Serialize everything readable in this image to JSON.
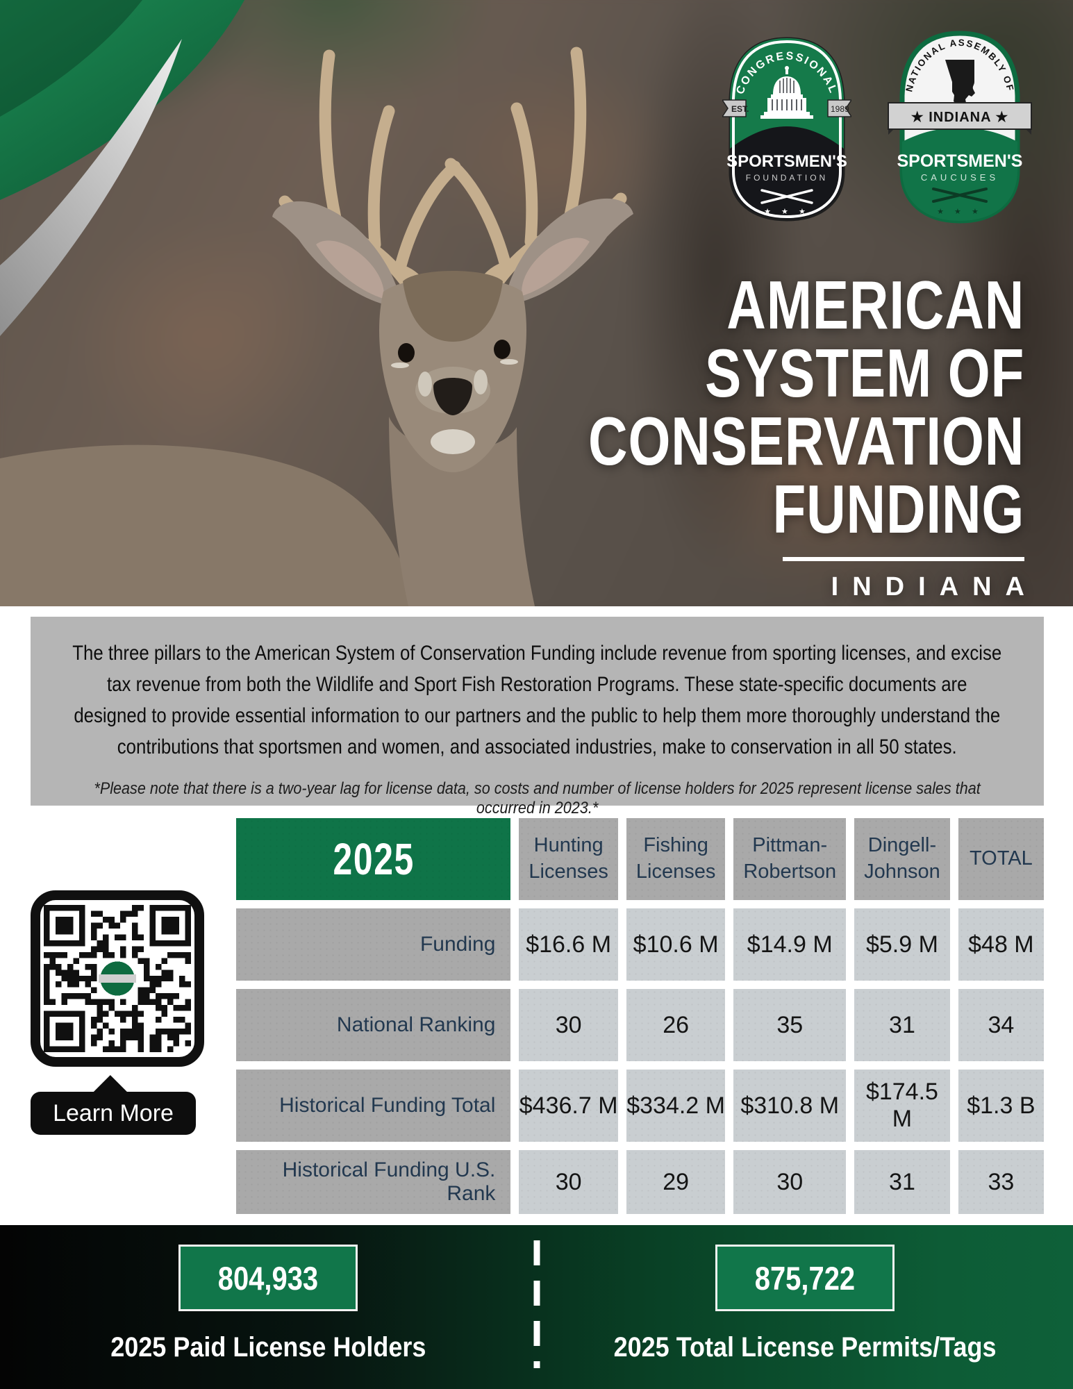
{
  "logos": {
    "csf": {
      "arc_text": "CONGRESSIONAL",
      "est_label": "EST.",
      "year_label": "1989",
      "line1": "SPORTSMEN'S",
      "line2": "FOUNDATION",
      "stars": "★ ★ ★"
    },
    "nasc": {
      "arc_text": "NATIONAL ASSEMBLY OF",
      "banner": "★ INDIANA ★",
      "line1": "SPORTSMEN'S",
      "line2": "CAUCUSES",
      "stars": "★ ★ ★"
    }
  },
  "header": {
    "title_lines": [
      "AMERICAN",
      "SYSTEM OF",
      "CONSERVATION",
      "FUNDING"
    ],
    "state": "INDIANA"
  },
  "intro": {
    "paragraph": "The three pillars to the American System of Conservation Funding include revenue from sporting licenses, and excise tax revenue from both the Wildlife and Sport Fish Restoration Programs. These state-specific documents are designed to provide essential information to our partners and the public to help them more thoroughly understand the contributions that sportsmen and women, and associated industries, make to conservation in all 50 states.",
    "note": "*Please note that there is a two-year lag for license data, so costs and number of license holders for 2025 represent license sales that occurred in 2023.*"
  },
  "table": {
    "year": "2025",
    "columns": [
      "Hunting Licenses",
      "Fishing Licenses",
      "Pittman-Robertson",
      "Dingell-Johnson",
      "TOTAL"
    ],
    "rows": [
      {
        "label": "Funding",
        "values": [
          "$16.6 M",
          "$10.6 M",
          "$14.9 M",
          "$5.9 M",
          "$48 M"
        ]
      },
      {
        "label": "National Ranking",
        "values": [
          "30",
          "26",
          "35",
          "31",
          "34"
        ]
      },
      {
        "label": "Historical Funding Total",
        "values": [
          "$436.7 M",
          "$334.2 M",
          "$310.8 M",
          "$174.5 M",
          "$1.3 B"
        ]
      },
      {
        "label": "Historical Funding U.S. Rank",
        "values": [
          "30",
          "29",
          "30",
          "31",
          "33"
        ]
      }
    ]
  },
  "qr": {
    "button_label": "Learn More"
  },
  "footer": {
    "left": {
      "value": "804,933",
      "label": "2025 Paid License Holders"
    },
    "right": {
      "value": "875,722",
      "label": "2025 Total License Permits/Tags"
    }
  },
  "colors": {
    "brand_green": "#0f7448",
    "dark_green": "#0d5c36",
    "panel_gray": "#b5b5b5",
    "cell_dark_gray": "#a9a9a9",
    "cell_light_gray": "#c9ced1",
    "navy_text": "#22384f"
  }
}
